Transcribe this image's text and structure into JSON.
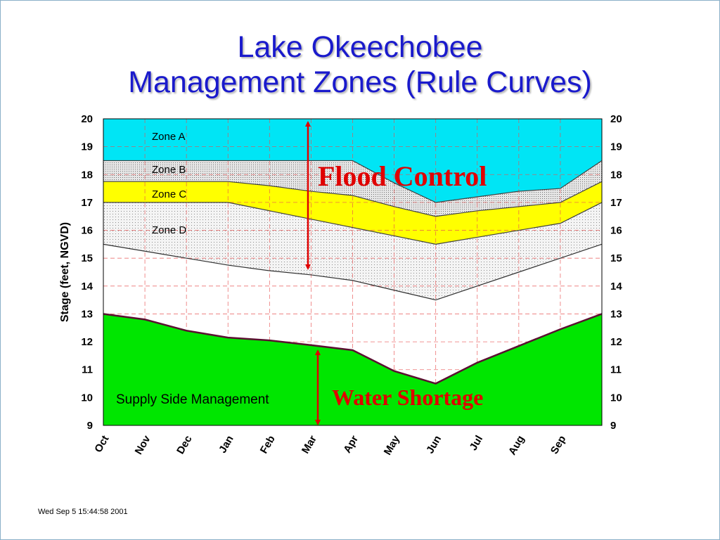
{
  "title": {
    "line1": "Lake Okeechobee",
    "line2": "Management Zones (Rule Curves)"
  },
  "timestamp": "Wed Sep  5 15:44:58 2001",
  "annotations": {
    "flood_control": "Flood Control",
    "water_shortage": "Water Shortage",
    "supply_side": "Supply Side Management",
    "zone_a": "Zone A",
    "zone_b": "Zone B",
    "zone_c": "Zone C",
    "zone_d": "Zone D"
  },
  "colors": {
    "title": "#1a1acc",
    "zone_a": "#00e5f5",
    "zone_c": "#ffff00",
    "water_shortage": "#00e600",
    "annotation_red": "#e00000",
    "grid_red": "#e85050"
  },
  "chart_data": {
    "type": "area",
    "ylabel": "Stage (feet, NGVD)",
    "ylim": [
      9,
      20
    ],
    "yticks": [
      9,
      10,
      11,
      12,
      13,
      14,
      15,
      16,
      17,
      18,
      19,
      20
    ],
    "categories": [
      "Oct",
      "Nov",
      "Dec",
      "Jan",
      "Feb",
      "Mar",
      "Apr",
      "May",
      "Jun",
      "Jul",
      "Aug",
      "Sep"
    ],
    "x_domain": [
      0,
      12
    ],
    "grid": true,
    "series": [
      {
        "x": [
          0,
          1,
          2,
          3,
          4,
          5,
          6,
          7,
          8,
          9,
          10,
          11,
          12
        ],
        "values": [
          18.5,
          18.5,
          18.5,
          18.5,
          18.5,
          18.5,
          18.5,
          17.7,
          17.0,
          17.2,
          17.4,
          17.5,
          18.5
        ]
      },
      {
        "x": [
          0,
          1,
          2,
          3,
          4,
          5,
          6,
          7,
          8,
          9,
          10,
          11,
          12
        ],
        "values": [
          17.75,
          17.75,
          17.75,
          17.75,
          17.6,
          17.4,
          17.25,
          16.85,
          16.5,
          16.7,
          16.85,
          17.0,
          17.75
        ]
      },
      {
        "x": [
          0,
          1,
          2,
          3,
          4,
          5,
          6,
          7,
          8,
          9,
          10,
          11,
          12
        ],
        "values": [
          17.0,
          17.0,
          17.0,
          17.0,
          16.7,
          16.4,
          16.1,
          15.8,
          15.5,
          15.75,
          16.0,
          16.25,
          17.0
        ]
      },
      {
        "x": [
          0,
          1,
          2,
          3,
          4,
          5,
          6,
          7,
          8,
          9,
          10,
          11,
          12
        ],
        "values": [
          15.5,
          15.25,
          15.0,
          14.75,
          14.55,
          14.4,
          14.2,
          13.85,
          13.5,
          14.0,
          14.5,
          15.0,
          15.5
        ]
      },
      {
        "x": [
          0,
          1,
          2,
          3,
          4,
          5,
          6,
          7,
          8,
          9,
          10,
          11,
          12
        ],
        "values": [
          13.0,
          12.8,
          12.4,
          12.15,
          12.05,
          11.88,
          11.7,
          10.95,
          10.5,
          11.25,
          11.85,
          12.45,
          13.0
        ]
      }
    ]
  }
}
